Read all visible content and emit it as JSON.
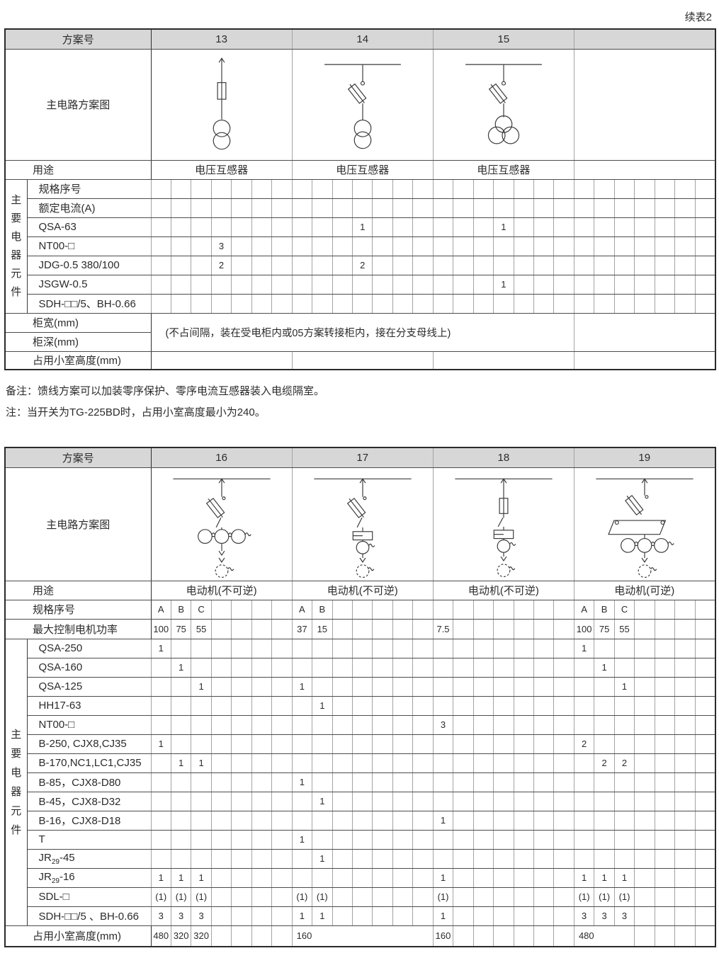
{
  "page": {
    "continuation_label": "续表2"
  },
  "colors": {
    "header_bg": "#d7d7d7",
    "text": "#2b2b2b",
    "border_dark": "#3c3c3c",
    "border_light": "#a3a3a3",
    "diagram_stroke": "#3a3a3a"
  },
  "notes": [
    "备注：馈线方案可以加装零序保护、零序电流互感器装入电缆隔室。",
    "注：当开关为TG-225BD时，占用小室高度最小为240。"
  ],
  "table1": {
    "header_label": "方案号",
    "diagram_label": "主电路方案图",
    "usage_label": "用途",
    "group_label": "主要电器元件",
    "schemes": [
      {
        "id": "13",
        "usage": "电压互感器",
        "diagram": "vt-fuse-plain"
      },
      {
        "id": "14",
        "usage": "电压互感器",
        "diagram": "vt-fuse-switch-2coil"
      },
      {
        "id": "15",
        "usage": "电压互感器",
        "diagram": "vt-fuse-switch-3coil"
      },
      {
        "id": "",
        "usage": "",
        "diagram": "none"
      }
    ],
    "component_rows": [
      {
        "label": "规格序号",
        "cells": {}
      },
      {
        "label": "额定电流(A)",
        "cells": {}
      },
      {
        "label": "QSA-63",
        "cells": {
          "11": "1",
          "18": "1"
        }
      },
      {
        "label": "NT00-□",
        "cells": {
          "4": "3"
        }
      },
      {
        "label": "JDG-0.5 380/100",
        "cells": {
          "4": "2",
          "11": "2"
        }
      },
      {
        "label": "JSGW-0.5",
        "cells": {
          "18": "1"
        }
      },
      {
        "label": "SDH-□□/5、BH-0.66",
        "cells": {}
      }
    ],
    "cabinet_width_label": "柜宽(mm)",
    "cabinet_depth_label": "柜深(mm)",
    "span_note": "(不占间隔，装在受电柜内或05方案转接柜内，接在分支母线上)",
    "cabinet_height_label": "占用小室高度(mm)",
    "cabinet_height_row": {
      "schemes": [
        {
          "merged": 7,
          "value": ""
        },
        {
          "merged": 7,
          "value": ""
        },
        {
          "merged": 7,
          "value": ""
        },
        {
          "merged": 7,
          "value": ""
        }
      ]
    }
  },
  "table2": {
    "header_label": "方案号",
    "diagram_label": "主电路方案图",
    "usage_label": "用途",
    "group_label": "主要电器元件",
    "spec_label": "规格序号",
    "power_label": "最大控制电机功率",
    "schemes": [
      {
        "id": "16",
        "usage": "电动机(不可逆)",
        "diagram": "motor-nonrev-3ct"
      },
      {
        "id": "17",
        "usage": "电动机(不可逆)",
        "diagram": "motor-nonrev-relay"
      },
      {
        "id": "18",
        "usage": "电动机(不可逆)",
        "diagram": "motor-nonrev-fuse-relay"
      },
      {
        "id": "19",
        "usage": "电动机(可逆)",
        "diagram": "motor-rev-3ct"
      }
    ],
    "spec_cells": {
      "1": "A",
      "2": "B",
      "3": "C",
      "8": "A",
      "9": "B",
      "22": "A",
      "23": "B",
      "24": "C"
    },
    "power_cells": {
      "1": "100",
      "2": "75",
      "3": "55",
      "8": "37",
      "9": "15",
      "15": "7.5",
      "22": "100",
      "23": "75",
      "24": "55"
    },
    "component_rows": [
      {
        "label": "QSA-250",
        "cells": {
          "1": "1",
          "22": "1"
        }
      },
      {
        "label": "QSA-160",
        "cells": {
          "2": "1",
          "23": "1"
        }
      },
      {
        "label": "QSA-125",
        "cells": {
          "3": "1",
          "8": "1",
          "24": "1"
        }
      },
      {
        "label": "HH17-63",
        "cells": {
          "9": "1"
        }
      },
      {
        "label": "NT00-□",
        "cells": {
          "15": "3"
        }
      },
      {
        "label": "B-250, CJX8,CJ35",
        "cells": {
          "1": "1",
          "22": "2"
        }
      },
      {
        "label": "B-170,NC1,LC1,CJ35",
        "cells": {
          "2": "1",
          "3": "1",
          "23": "2",
          "24": "2"
        }
      },
      {
        "label": "B-85，CJX8-D80",
        "cells": {
          "8": "1"
        }
      },
      {
        "label": "B-45，CJX8-D32",
        "cells": {
          "9": "1"
        }
      },
      {
        "label": "B-16，CJX8-D18",
        "cells": {
          "15": "1"
        }
      },
      {
        "label": "T",
        "cells": {
          "8": "1"
        }
      },
      {
        "label": "JR{29}-45",
        "cells": {
          "9": "1"
        }
      },
      {
        "label": "JR{29}-16",
        "cells": {
          "1": "1",
          "2": "1",
          "3": "1",
          "15": "1",
          "22": "1",
          "23": "1",
          "24": "1"
        }
      },
      {
        "label": "SDL-□",
        "cells": {
          "1": "(1)",
          "2": "(1)",
          "3": "(1)",
          "8": "(1)",
          "9": "(1)",
          "15": "(1)",
          "22": "(1)",
          "23": "(1)",
          "24": "(1)"
        }
      },
      {
        "label": "SDH-□□/5 、BH-0.66",
        "cells": {
          "1": "3",
          "2": "3",
          "3": "3",
          "8": "1",
          "9": "1",
          "15": "1",
          "22": "3",
          "23": "3",
          "24": "3"
        }
      }
    ],
    "cabinet_height_label": "占用小室高度(mm)",
    "cabinet_height_row": {
      "schemes": [
        {
          "cells": {
            "1": "480",
            "2": "320",
            "3": "320"
          }
        },
        {
          "merged": 7,
          "value": "160"
        },
        {
          "cells": {
            "1": "160"
          }
        },
        {
          "merged": 3,
          "value": "480",
          "trailing": 4
        }
      ]
    }
  }
}
